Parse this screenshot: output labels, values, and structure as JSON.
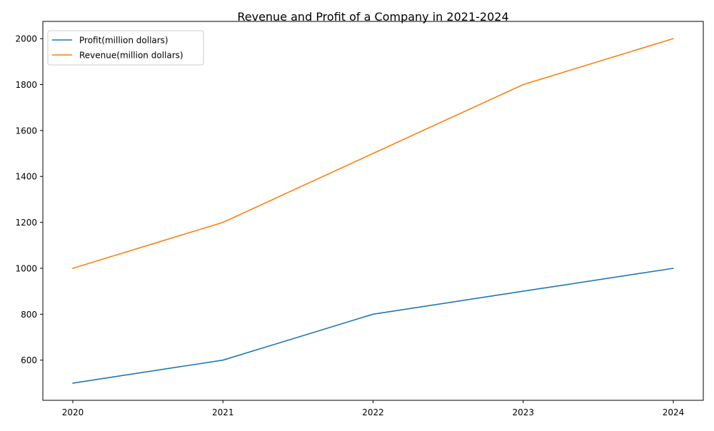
{
  "chart_data": {
    "type": "line",
    "title": "Revenue and Profit of a Company in 2021-2024",
    "xlabel": "",
    "ylabel": "",
    "x": [
      "2020",
      "2021",
      "2022",
      "2023",
      "2024"
    ],
    "series": [
      {
        "name": "Profit(million dollars)",
        "values": [
          500,
          600,
          800,
          900,
          1000
        ],
        "color": "#1f77b4"
      },
      {
        "name": "Revenue(million dollars)",
        "values": [
          1000,
          1200,
          1500,
          1800,
          2000
        ],
        "color": "#ff7f0e"
      }
    ],
    "yticks": [
      600,
      800,
      1000,
      1200,
      1400,
      1600,
      1800,
      2000
    ],
    "ylim": [
      425,
      2075
    ],
    "grid": false,
    "legend_position": "top-left"
  }
}
